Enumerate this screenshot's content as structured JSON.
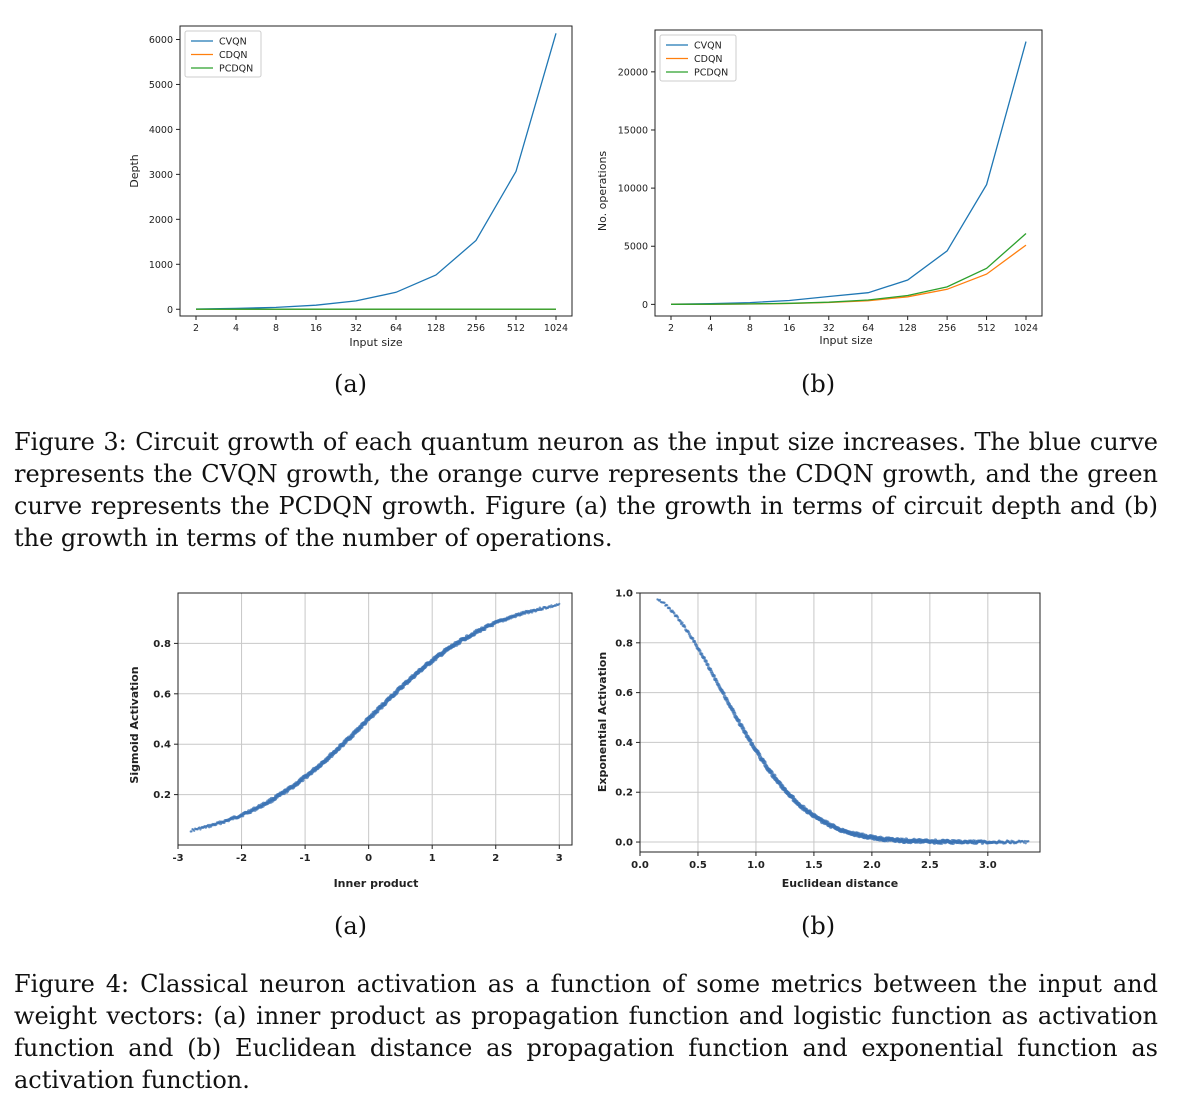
{
  "fig3": {
    "a": {
      "sublabel": "(a)",
      "chart_data": {
        "type": "line",
        "xscale": "log2",
        "x": [
          2,
          4,
          8,
          16,
          32,
          64,
          128,
          256,
          512,
          1024
        ],
        "xticks": [
          "2",
          "4",
          "8",
          "16",
          "32",
          "64",
          "128",
          "256",
          "512",
          "1024"
        ],
        "xlabel": "Input size",
        "ylabel": "Depth",
        "ylim": [
          -150,
          6300
        ],
        "yticks": [
          0,
          1000,
          2000,
          3000,
          4000,
          5000,
          6000
        ],
        "legend_position": "top-left",
        "series": [
          {
            "name": "CVQN",
            "color": "#1f77b4",
            "values": [
              6,
              18,
              42,
              90,
              186,
              378,
              762,
              1530,
              3066,
              6138
            ]
          },
          {
            "name": "CDQN",
            "color": "#ff7f0e",
            "values": [
              1,
              1,
              1,
              1,
              1,
              1,
              1,
              1,
              1,
              1
            ]
          },
          {
            "name": "PCDQN",
            "color": "#2ca02c",
            "values": [
              1,
              1,
              1,
              1,
              1,
              1,
              1,
              1,
              1,
              1
            ]
          }
        ]
      }
    },
    "b": {
      "sublabel": "(b)",
      "chart_data": {
        "type": "line",
        "xscale": "log2",
        "x": [
          2,
          4,
          8,
          16,
          32,
          64,
          128,
          256,
          512,
          1024
        ],
        "xticks": [
          "2",
          "4",
          "8",
          "16",
          "32",
          "64",
          "128",
          "256",
          "512",
          "1024"
        ],
        "xlabel": "Input size",
        "ylabel": "No. operations",
        "ylim": [
          -1000,
          23600
        ],
        "yticks": [
          0,
          5000,
          10000,
          15000,
          20000
        ],
        "legend_position": "top-left",
        "series": [
          {
            "name": "CVQN",
            "color": "#1f77b4",
            "values": [
              22,
              66,
              154,
              330,
              680,
              1000,
              2100,
              4600,
              10300,
              22600
            ]
          },
          {
            "name": "CDQN",
            "color": "#ff7f0e",
            "values": [
              5,
              15,
              35,
              75,
              160,
              320,
              650,
              1300,
              2600,
              5100
            ]
          },
          {
            "name": "PCDQN",
            "color": "#2ca02c",
            "values": [
              6,
              18,
              42,
              90,
              190,
              380,
              760,
              1500,
              3100,
              6100
            ]
          }
        ]
      }
    },
    "caption": "Figure 3: Circuit growth of each quantum neuron as the input size increases. The blue curve represents the CVQN growth, the orange curve represents the CDQN growth, and the green curve represents the PCDQN growth. Figure (a) the growth in terms of circuit depth and (b) the growth in terms of the number of operations."
  },
  "fig4": {
    "a": {
      "sublabel": "(a)",
      "chart_data": {
        "type": "scatter",
        "function": "sigmoid",
        "xlabel": "Inner product",
        "ylabel": "Sigmoid Activation",
        "xlim": [
          -3,
          3.2
        ],
        "ylim": [
          0.0,
          1.0
        ],
        "x_range": [
          -2.8,
          3.0
        ],
        "xticks": [
          "-3",
          "-2",
          "-1",
          "0",
          "1",
          "2",
          "3"
        ],
        "xtick_values": [
          -3,
          -2,
          -1,
          0,
          1,
          2,
          3
        ],
        "yticks": [
          "0.2",
          "0.4",
          "0.6",
          "0.8"
        ],
        "ytick_values": [
          0.2,
          0.4,
          0.6,
          0.8
        ],
        "grid": true,
        "color": "#3b73b4"
      }
    },
    "b": {
      "sublabel": "(b)",
      "chart_data": {
        "type": "scatter",
        "function": "exp(-x^2)",
        "xlabel": "Euclidean distance",
        "ylabel": "Exponential Activation",
        "xlim": [
          0.0,
          3.45
        ],
        "ylim": [
          -0.04,
          1.0
        ],
        "x_range": [
          0.15,
          3.35
        ],
        "xticks": [
          "0.0",
          "0.5",
          "1.0",
          "1.5",
          "2.0",
          "2.5",
          "3.0"
        ],
        "xtick_values": [
          0,
          0.5,
          1.0,
          1.5,
          2.0,
          2.5,
          3.0
        ],
        "yticks": [
          "0.0",
          "0.2",
          "0.4",
          "0.6",
          "0.8",
          "1.0"
        ],
        "ytick_values": [
          0,
          0.2,
          0.4,
          0.6,
          0.8,
          1.0
        ],
        "grid": true,
        "color": "#3b73b4"
      }
    },
    "caption": "Figure 4: Classical neuron activation as a function of some metrics between the input and weight vectors: (a) inner product as propagation function and logistic function as activation function and (b) Euclidean distance as propagation function and exponential function as activation function."
  }
}
